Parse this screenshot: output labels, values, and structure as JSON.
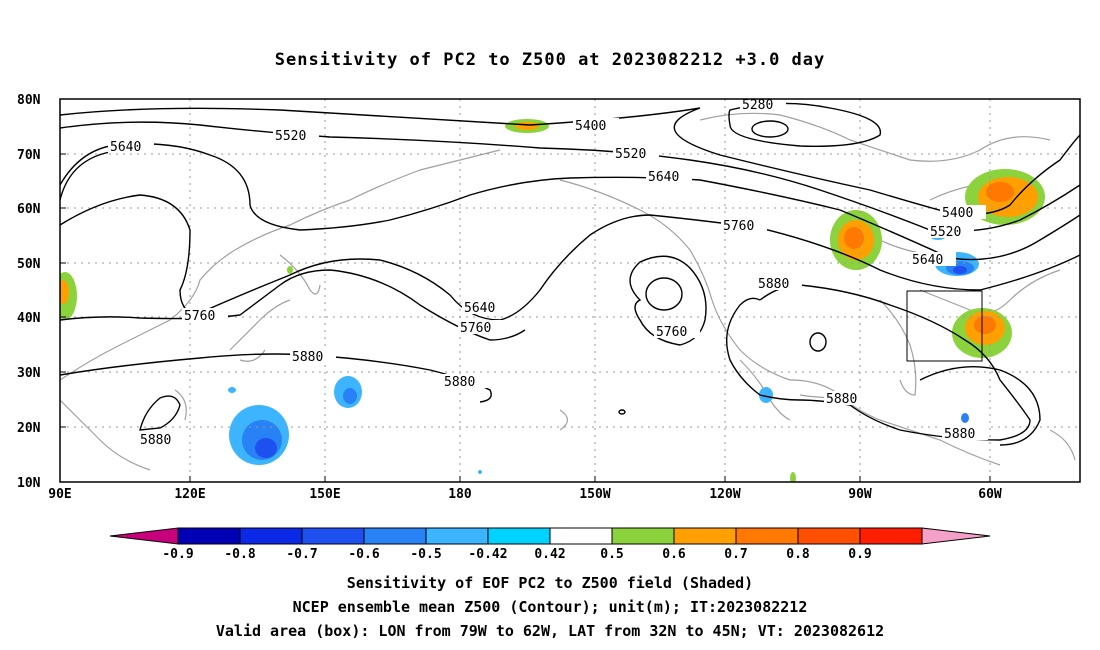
{
  "title": "Sensitivity of PC2 to Z500 at 2023082212 +3.0 day",
  "map": {
    "lat_ticks": [
      "80N",
      "70N",
      "60N",
      "50N",
      "40N",
      "30N",
      "20N",
      "10N"
    ],
    "lon_ticks": [
      "90E",
      "120E",
      "150E",
      "180",
      "150W",
      "120W",
      "90W",
      "60W"
    ],
    "contour_labels": [
      "5280",
      "5400",
      "5520",
      "5640",
      "5760",
      "5880"
    ],
    "valid_box": {
      "lon_from": "79W",
      "lon_to": "62W",
      "lat_from": "32N",
      "lat_to": "45N"
    }
  },
  "colorbar": {
    "labels": [
      "-0.9",
      "-0.8",
      "-0.7",
      "-0.6",
      "-0.5",
      "-0.42",
      "0.42",
      "0.5",
      "0.6",
      "0.7",
      "0.8",
      "0.9"
    ],
    "colors": [
      "#c8007c",
      "#0000b4",
      "#0a28e6",
      "#1e50f0",
      "#2882f5",
      "#3cb4ff",
      "#00d2ff",
      "#ffffff",
      "#8cd23c",
      "#ffa000",
      "#ff7800",
      "#ff5000",
      "#ff1e00",
      "#f5a0c8"
    ]
  },
  "captions": [
    "Sensitivity of EOF PC2 to Z500 field (Shaded)",
    "NCEP ensemble mean Z500 (Contour); unit(m); IT:2023082212",
    "Valid area (box): LON from 79W to 62W, LAT from 32N to 45N; VT: 2023082612"
  ]
}
